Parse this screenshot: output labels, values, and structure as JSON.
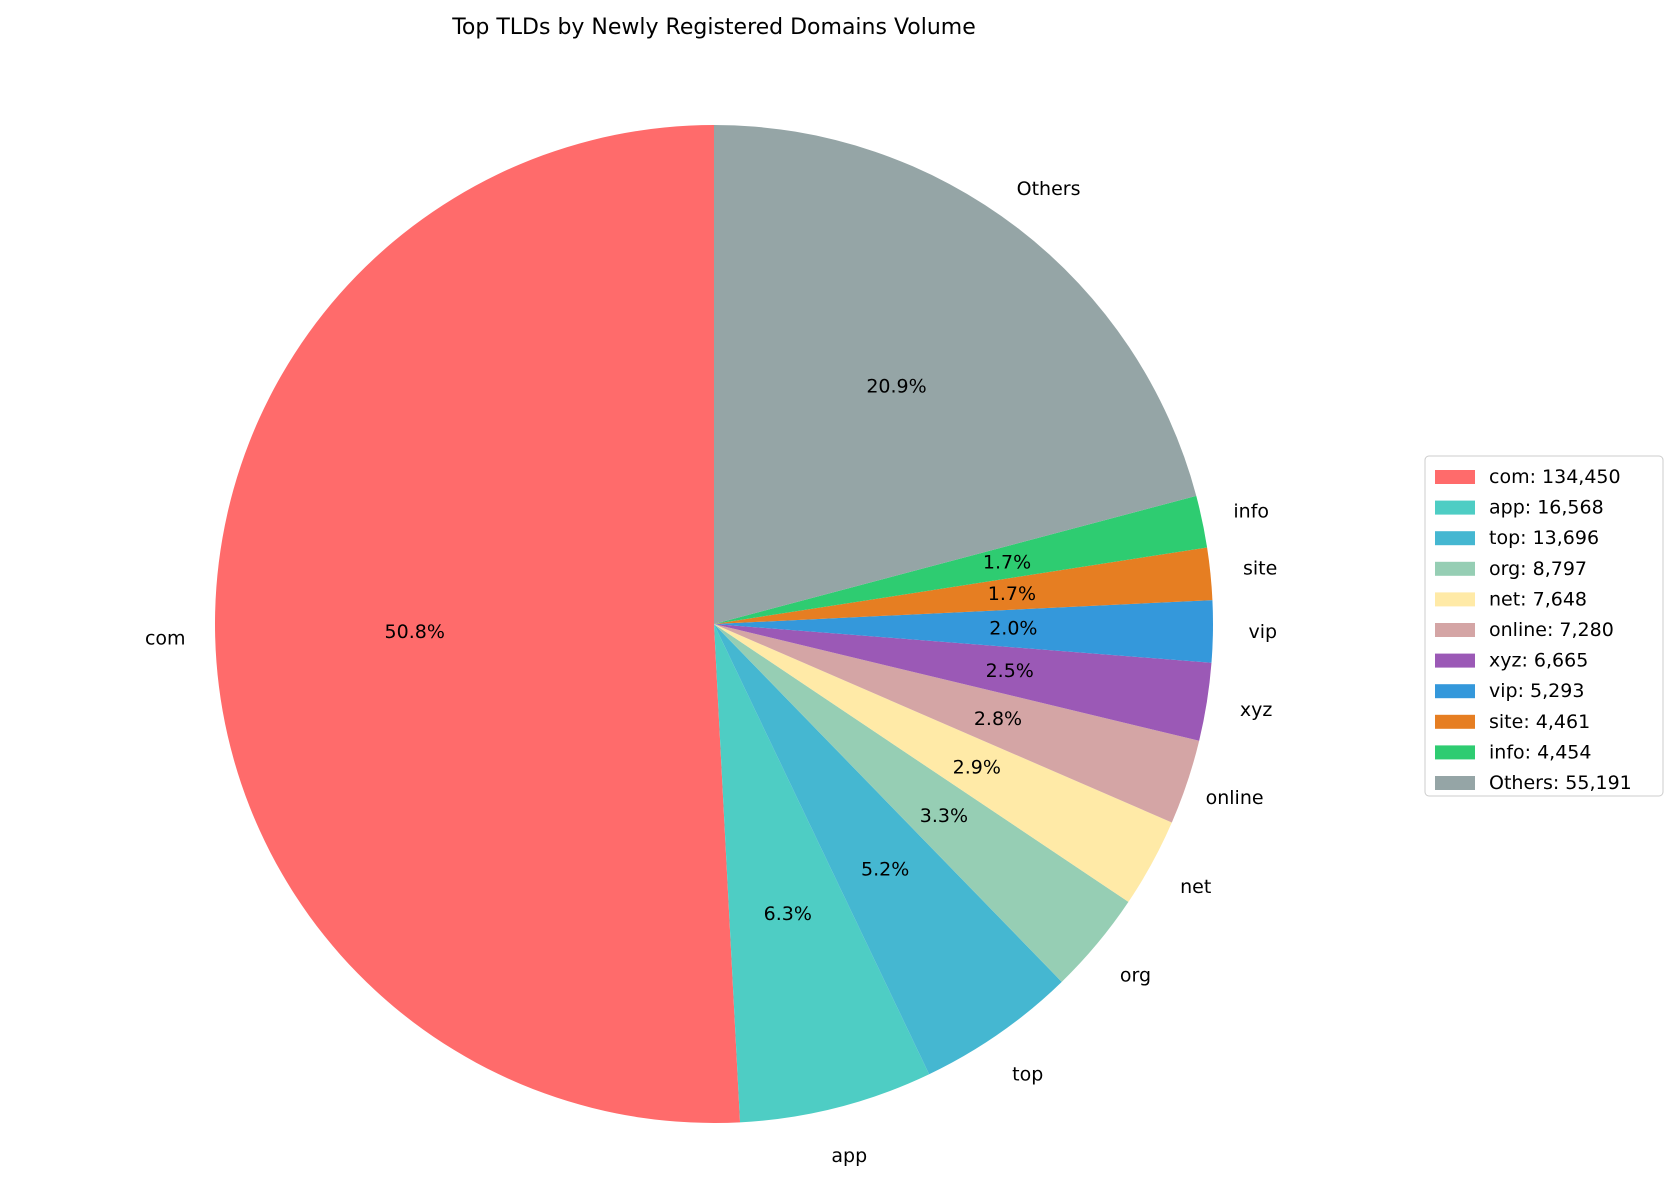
{
  "chart_data": {
    "type": "pie",
    "title": "Top TLDs by Newly Registered Domains Volume",
    "start_angle_deg": 90,
    "direction": "counterclockwise",
    "legend_position": "right",
    "slices": [
      {
        "label": "com",
        "value": 134450,
        "legend": "com: 134,450",
        "pct": "50.8%",
        "color": "#FF6B6B"
      },
      {
        "label": "app",
        "value": 16568,
        "legend": "app: 16,568",
        "pct": "6.3%",
        "color": "#4ECDC4"
      },
      {
        "label": "top",
        "value": 13696,
        "legend": "top: 13,696",
        "pct": "5.2%",
        "color": "#45B7D1"
      },
      {
        "label": "org",
        "value": 8797,
        "legend": "org: 8,797",
        "pct": "3.3%",
        "color": "#96CEB4"
      },
      {
        "label": "net",
        "value": 7648,
        "legend": "net: 7,648",
        "pct": "2.9%",
        "color": "#FFEAA7"
      },
      {
        "label": "online",
        "value": 7280,
        "legend": "online: 7,280",
        "pct": "2.8%",
        "color": "#D4A5A5"
      },
      {
        "label": "xyz",
        "value": 6665,
        "legend": "xyz: 6,665",
        "pct": "2.5%",
        "color": "#9B59B6"
      },
      {
        "label": "vip",
        "value": 5293,
        "legend": "vip: 5,293",
        "pct": "2.0%",
        "color": "#3498DB"
      },
      {
        "label": "site",
        "value": 4461,
        "legend": "site: 4,461",
        "pct": "1.7%",
        "color": "#E67E22"
      },
      {
        "label": "info",
        "value": 4454,
        "legend": "info: 4,454",
        "pct": "1.7%",
        "color": "#2ECC71"
      },
      {
        "label": "Others",
        "value": 55191,
        "legend": "Others: 55,191",
        "pct": "20.9%",
        "color": "#95A5A6"
      }
    ]
  }
}
